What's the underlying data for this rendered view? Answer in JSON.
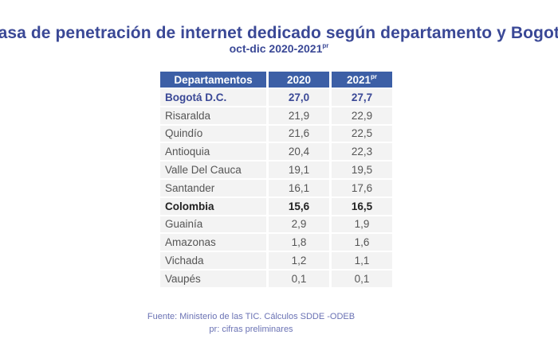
{
  "title": "Tasa de penetración de internet dedicado según departamento y Bogotá",
  "subtitle": "oct-dic 2020-2021",
  "subtitle_sup": "pr",
  "table": {
    "headers": [
      "Departamentos",
      "2020",
      "2021"
    ],
    "header_sup": "pr",
    "rows": [
      {
        "name": "Bogotá D.C.",
        "v2020": "27,0",
        "v2021": "27,7"
      },
      {
        "name": "Risaralda",
        "v2020": "21,9",
        "v2021": "22,9"
      },
      {
        "name": "Quindío",
        "v2020": "21,6",
        "v2021": "22,5"
      },
      {
        "name": "Antioquia",
        "v2020": "20,4",
        "v2021": "22,3"
      },
      {
        "name": "Valle Del Cauca",
        "v2020": "19,1",
        "v2021": "19,5"
      },
      {
        "name": "Santander",
        "v2020": "16,1",
        "v2021": "17,6"
      },
      {
        "name": "Colombia",
        "v2020": "15,6",
        "v2021": "16,5"
      },
      {
        "name": "Guainía",
        "v2020": "2,9",
        "v2021": "1,9"
      },
      {
        "name": "Amazonas",
        "v2020": "1,8",
        "v2021": "1,6"
      },
      {
        "name": "Vichada",
        "v2020": "1,2",
        "v2021": "1,1"
      },
      {
        "name": "Vaupés",
        "v2020": "0,1",
        "v2021": "0,1"
      }
    ]
  },
  "footer": {
    "source": "Fuente: Ministerio de las TIC. Cálculos SDDE -ODEB",
    "note": "pr: cifras preliminares"
  },
  "colors": {
    "header": "#3c5fa6",
    "title": "#3a4896"
  }
}
